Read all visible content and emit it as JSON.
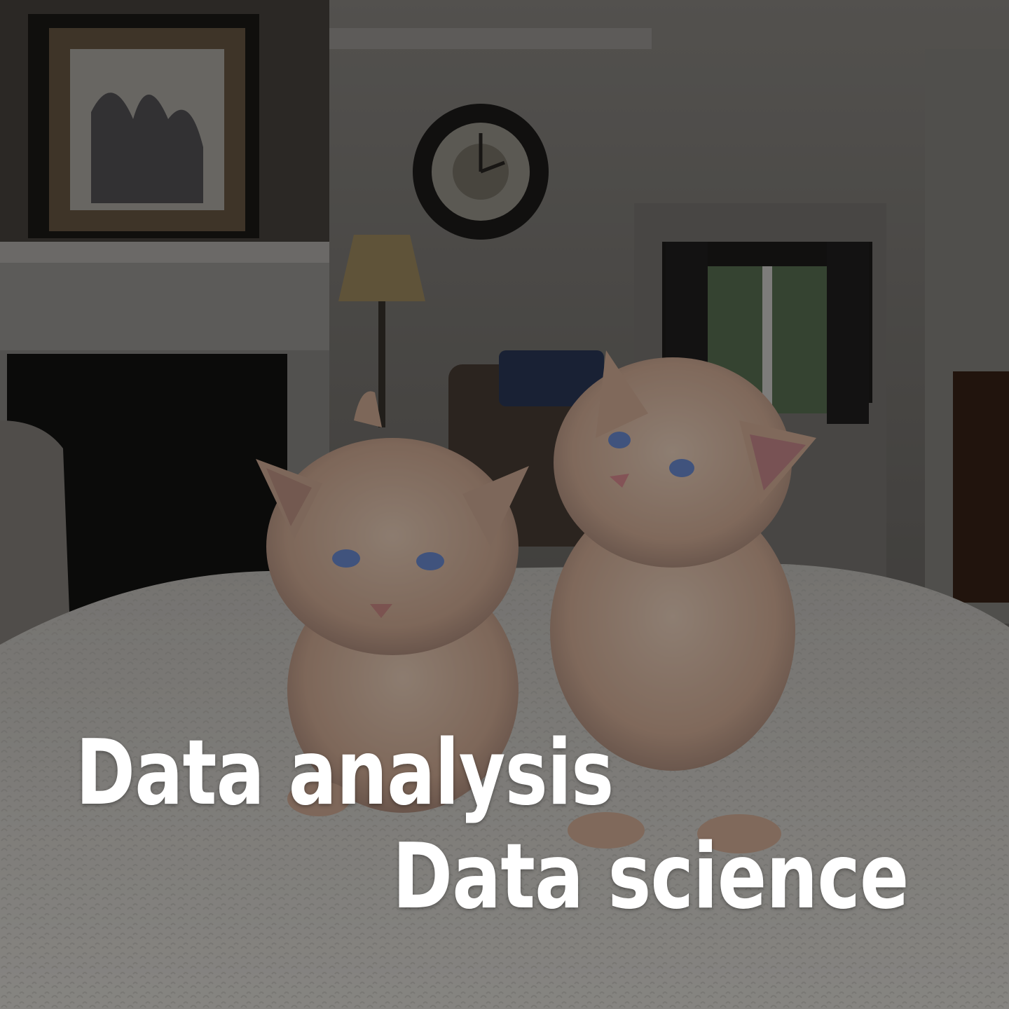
{
  "caption": {
    "line1": "Data analysis",
    "line2": "Data science"
  },
  "colors": {
    "overlay_tint": "#000000",
    "caption_text": "#ffffff",
    "kitten_fur": "#e9c3a8",
    "kitten_eyes": "#6f8fd8",
    "blanket": "#d8d5cf"
  }
}
